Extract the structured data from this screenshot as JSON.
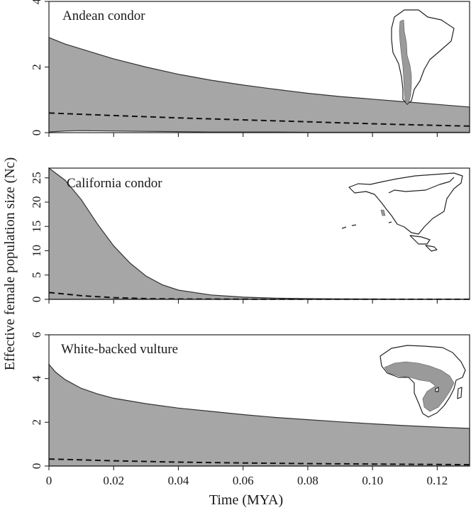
{
  "figure": {
    "ylabel": "Effective female population size (Nc)",
    "xlabel": "Time (MYA)"
  },
  "colors": {
    "band_fill": "#a6a6a6",
    "line": "#111111",
    "map_range": "#9a9a9a"
  },
  "chart_data": [
    {
      "type": "area",
      "title": "Andean condor",
      "xlim": [
        0,
        0.13
      ],
      "ylim": [
        0,
        4
      ],
      "x_ticks": [
        0,
        0.02,
        0.04,
        0.06,
        0.08,
        0.1,
        0.12
      ],
      "x_tick_labels": [
        "0",
        "0.02",
        "0.04",
        "0.06",
        "0.08",
        "0.10",
        "0.12"
      ],
      "y_ticks": [
        0,
        2,
        4
      ],
      "series": [
        {
          "role": "upper_bound",
          "x": [
            0,
            0.005,
            0.01,
            0.02,
            0.03,
            0.04,
            0.05,
            0.06,
            0.07,
            0.08,
            0.09,
            0.1,
            0.11,
            0.12,
            0.13
          ],
          "values": [
            2.9,
            2.7,
            2.55,
            2.25,
            2.0,
            1.78,
            1.6,
            1.45,
            1.32,
            1.2,
            1.1,
            1.02,
            0.94,
            0.86,
            0.78
          ]
        },
        {
          "role": "lower_bound",
          "x": [
            0,
            0.005,
            0.01,
            0.02,
            0.03,
            0.04,
            0.05,
            0.06,
            0.07,
            0.08,
            0.09,
            0.1,
            0.11,
            0.12,
            0.13
          ],
          "values": [
            0.02,
            0.05,
            0.06,
            0.05,
            0.04,
            0.03,
            0.02,
            0.02,
            0.02,
            0.01,
            0.01,
            0.01,
            0.01,
            0.01,
            0.01
          ]
        },
        {
          "role": "median",
          "x": [
            0,
            0.02,
            0.04,
            0.06,
            0.08,
            0.1,
            0.12,
            0.13
          ],
          "values": [
            0.6,
            0.52,
            0.45,
            0.39,
            0.33,
            0.27,
            0.22,
            0.2
          ]
        }
      ]
    },
    {
      "type": "area",
      "title": "California condor",
      "xlim": [
        0,
        0.13
      ],
      "ylim": [
        0,
        27
      ],
      "x_ticks": [
        0,
        0.02,
        0.04,
        0.06,
        0.08,
        0.1,
        0.12
      ],
      "x_tick_labels": [
        "0",
        "0.02",
        "0.04",
        "0.06",
        "0.08",
        "0.10",
        "0.12"
      ],
      "y_ticks": [
        0,
        5,
        10,
        15,
        20,
        25
      ],
      "series": [
        {
          "role": "upper_bound",
          "x": [
            0,
            0.005,
            0.01,
            0.015,
            0.02,
            0.025,
            0.03,
            0.035,
            0.04,
            0.05,
            0.06,
            0.07,
            0.08,
            0.09,
            0.1,
            0.11,
            0.12,
            0.13
          ],
          "values": [
            27,
            24.5,
            20.5,
            15.5,
            11,
            7.5,
            4.8,
            3.0,
            1.9,
            0.9,
            0.45,
            0.25,
            0.15,
            0.1,
            0.07,
            0.05,
            0.04,
            0.03
          ]
        },
        {
          "role": "lower_bound",
          "x": [
            0,
            0.13
          ],
          "values": [
            0,
            0
          ]
        },
        {
          "role": "median",
          "x": [
            0,
            0.005,
            0.01,
            0.02,
            0.03,
            0.04,
            0.06,
            0.08,
            0.1,
            0.13
          ],
          "values": [
            1.4,
            1.1,
            0.75,
            0.35,
            0.15,
            0.07,
            0.03,
            0.02,
            0.01,
            0.01
          ]
        }
      ]
    },
    {
      "type": "area",
      "title": "White-backed vulture",
      "xlim": [
        0,
        0.13
      ],
      "ylim": [
        0,
        6
      ],
      "x_ticks": [
        0,
        0.02,
        0.04,
        0.06,
        0.08,
        0.1,
        0.12
      ],
      "x_tick_labels": [
        "0",
        "0.02",
        "0.04",
        "0.06",
        "0.08",
        "0.10",
        "0.12"
      ],
      "y_ticks": [
        0,
        2,
        4,
        6
      ],
      "series": [
        {
          "role": "upper_bound",
          "x": [
            0,
            0.002,
            0.005,
            0.01,
            0.015,
            0.02,
            0.03,
            0.04,
            0.05,
            0.06,
            0.07,
            0.08,
            0.09,
            0.1,
            0.11,
            0.12,
            0.13
          ],
          "values": [
            4.65,
            4.3,
            3.95,
            3.55,
            3.3,
            3.1,
            2.85,
            2.65,
            2.5,
            2.35,
            2.22,
            2.12,
            2.02,
            1.93,
            1.85,
            1.78,
            1.72
          ]
        },
        {
          "role": "lower_bound",
          "x": [
            0,
            0.13
          ],
          "values": [
            0,
            0
          ]
        },
        {
          "role": "median",
          "x": [
            0,
            0.02,
            0.04,
            0.06,
            0.08,
            0.1,
            0.12,
            0.13
          ],
          "values": [
            0.32,
            0.24,
            0.18,
            0.14,
            0.11,
            0.09,
            0.07,
            0.06
          ]
        }
      ]
    }
  ]
}
